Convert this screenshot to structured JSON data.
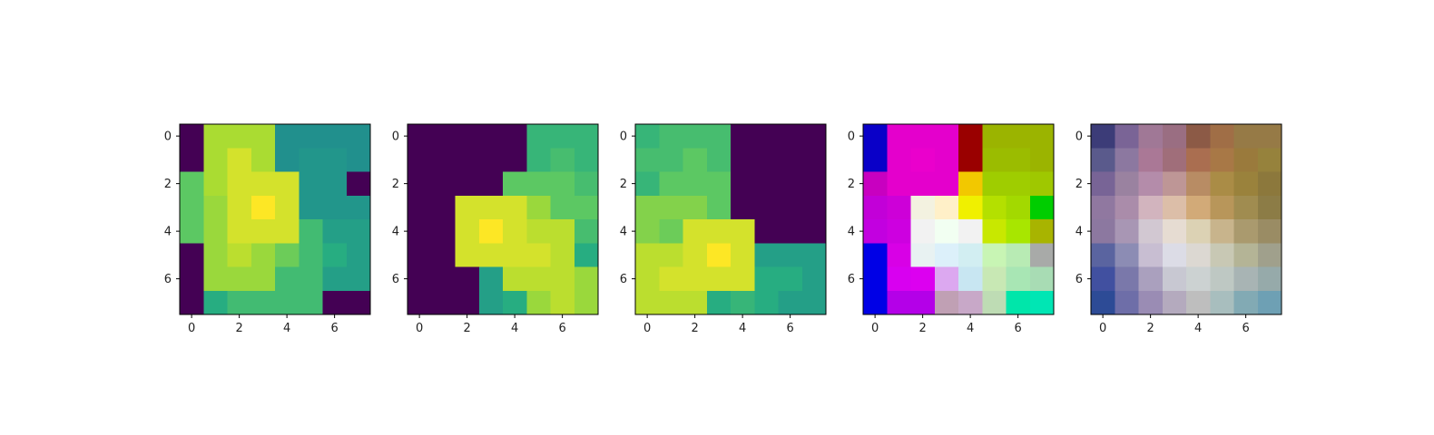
{
  "chart_data": [
    {
      "type": "heatmap",
      "colormap": "viridis",
      "x": [
        0,
        1,
        2,
        3,
        4,
        5,
        6,
        7
      ],
      "y": [
        0,
        1,
        2,
        3,
        4,
        5,
        6,
        7
      ],
      "x_ticks": [
        "0",
        "2",
        "4",
        "6"
      ],
      "y_ticks": [
        "0",
        "2",
        "4",
        "6"
      ],
      "vmin": 0,
      "vmax": 8,
      "values": [
        [
          0,
          7,
          7,
          7,
          4,
          4,
          4,
          4
        ],
        [
          0,
          7,
          7.5,
          7,
          4,
          4.2,
          4.2,
          4
        ],
        [
          6,
          7,
          7.5,
          7.5,
          7.5,
          4.2,
          4.2,
          0
        ],
        [
          6,
          6.8,
          7.5,
          8,
          7.5,
          4.2,
          4.2,
          4.2
        ],
        [
          6,
          6.8,
          7.5,
          7.5,
          7.5,
          5.5,
          4.5,
          4.5
        ],
        [
          0,
          6.8,
          7.2,
          6.8,
          6.2,
          5.5,
          5,
          4.5
        ],
        [
          0,
          6.8,
          6.8,
          6.8,
          5.5,
          5.5,
          4.5,
          4.5
        ],
        [
          0,
          5,
          5.5,
          5.5,
          5.5,
          5.5,
          0,
          0
        ]
      ]
    },
    {
      "type": "heatmap",
      "colormap": "viridis",
      "x": [
        0,
        1,
        2,
        3,
        4,
        5,
        6,
        7
      ],
      "y": [
        0,
        1,
        2,
        3,
        4,
        5,
        6,
        7
      ],
      "x_ticks": [
        "0",
        "2",
        "4",
        "6"
      ],
      "y_ticks": [
        "0",
        "2",
        "4",
        "6"
      ],
      "vmin": 0,
      "vmax": 8,
      "values": [
        [
          0,
          0,
          0,
          0,
          0,
          5.3,
          5.3,
          5.3
        ],
        [
          0,
          0,
          0,
          0,
          0,
          5.3,
          5.6,
          5.3
        ],
        [
          0,
          0,
          0,
          0,
          6,
          6,
          6,
          5.6
        ],
        [
          0,
          0,
          7.5,
          7.5,
          7.5,
          6.8,
          6,
          6
        ],
        [
          0,
          0,
          7.5,
          8,
          7.5,
          7.2,
          7.2,
          5.6
        ],
        [
          0,
          0,
          7.5,
          7.5,
          7.5,
          7.5,
          7.2,
          5
        ],
        [
          0,
          0,
          0,
          4.5,
          7.2,
          7.2,
          7.2,
          6.8
        ],
        [
          0,
          0,
          0,
          4.5,
          5,
          6.8,
          7.2,
          6.8
        ]
      ]
    },
    {
      "type": "heatmap",
      "colormap": "viridis",
      "x": [
        0,
        1,
        2,
        3,
        4,
        5,
        6,
        7
      ],
      "y": [
        0,
        1,
        2,
        3,
        4,
        5,
        6,
        7
      ],
      "x_ticks": [
        "0",
        "2",
        "4",
        "6"
      ],
      "y_ticks": [
        "0",
        "2",
        "4",
        "6"
      ],
      "vmin": 0,
      "vmax": 8,
      "values": [
        [
          5.3,
          5.6,
          5.6,
          5.6,
          0,
          0,
          0,
          0
        ],
        [
          5.6,
          5.6,
          6,
          5.6,
          0,
          0,
          0,
          0
        ],
        [
          5.3,
          6,
          6,
          6,
          0,
          0,
          0,
          0
        ],
        [
          6.5,
          6.5,
          6.5,
          6,
          0,
          0,
          0,
          0
        ],
        [
          6.5,
          6.2,
          7.5,
          7.5,
          7.5,
          0,
          0,
          0
        ],
        [
          7.2,
          7.2,
          7.5,
          8,
          7.5,
          4.5,
          4.5,
          4.5
        ],
        [
          7.2,
          7.5,
          7.5,
          7.5,
          7.5,
          5,
          5,
          4.5
        ],
        [
          7.2,
          7.2,
          7.2,
          5,
          5.3,
          5,
          4.5,
          4.5
        ]
      ]
    },
    {
      "type": "heatmap",
      "colormap": "rgb",
      "x": [
        0,
        1,
        2,
        3,
        4,
        5,
        6,
        7
      ],
      "y": [
        0,
        1,
        2,
        3,
        4,
        5,
        6,
        7
      ],
      "x_ticks": [
        "0",
        "2",
        "4",
        "6"
      ],
      "y_ticks": [
        "0",
        "2",
        "4",
        "6"
      ],
      "values": [
        [
          "#0a00c8",
          "#e400cc",
          "#e400cc",
          "#e400cc",
          "#9a0000",
          "#9bb400",
          "#9bb400",
          "#9bb400"
        ],
        [
          "#0a00c8",
          "#e400cc",
          "#ea00cc",
          "#e400cc",
          "#9a0000",
          "#9bbc00",
          "#9bbc00",
          "#9bb400"
        ],
        [
          "#c800c0",
          "#e400cc",
          "#e400cc",
          "#e400cc",
          "#f2c800",
          "#9fcd00",
          "#9fcd00",
          "#9fc800"
        ],
        [
          "#c200d8",
          "#cd00d8",
          "#f3f2e0",
          "#fff0c8",
          "#f0f000",
          "#b4e000",
          "#a3d900",
          "#00cd00"
        ],
        [
          "#c200e0",
          "#cd00e0",
          "#f2f2f2",
          "#f2fff2",
          "#f2f2f2",
          "#c8e800",
          "#a8e600",
          "#a8b400"
        ],
        [
          "#0000e6",
          "#d800e6",
          "#e8f2f2",
          "#dcf0fa",
          "#d2eef2",
          "#c8f5b4",
          "#b8ebb4",
          "#a8aaa8"
        ],
        [
          "#0000e6",
          "#d800f0",
          "#dc00f0",
          "#dca8f0",
          "#c8e6f2",
          "#c8e8b4",
          "#a8e6b4",
          "#a8dcb4"
        ],
        [
          "#0000e6",
          "#b400e8",
          "#b400e8",
          "#c0a0b4",
          "#c8a8c8",
          "#bedcb4",
          "#00e6aa",
          "#00e6b4"
        ]
      ]
    },
    {
      "type": "heatmap",
      "colormap": "rgb",
      "x": [
        0,
        1,
        2,
        3,
        4,
        5,
        6,
        7
      ],
      "y": [
        0,
        1,
        2,
        3,
        4,
        5,
        6,
        7
      ],
      "x_ticks": [
        "0",
        "2",
        "4",
        "6"
      ],
      "y_ticks": [
        "0",
        "2",
        "4",
        "6"
      ],
      "values": [
        [
          "#3c3c78",
          "#7a6496",
          "#a07896",
          "#9a6e82",
          "#8c5a46",
          "#a06e46",
          "#967a46",
          "#967a46"
        ],
        [
          "#5a5a8c",
          "#8c78a0",
          "#aa7896",
          "#a06e7a",
          "#aa6e50",
          "#a87846",
          "#9a7a3c",
          "#96823c"
        ],
        [
          "#786496",
          "#9a82a0",
          "#b48caa",
          "#be9696",
          "#b88c64",
          "#aa8c46",
          "#9a823c",
          "#8c783c"
        ],
        [
          "#9078a0",
          "#aa8caa",
          "#d2b4be",
          "#dcbea8",
          "#d2aa78",
          "#b8965a",
          "#a08c50",
          "#8c7c46"
        ],
        [
          "#8c78a0",
          "#a896b4",
          "#d2c8d2",
          "#e6dcd2",
          "#dcd2b4",
          "#c8b48c",
          "#aa9a6e",
          "#9a8c64"
        ],
        [
          "#5a64a0",
          "#8c8cb4",
          "#c8bed2",
          "#dcdce6",
          "#dcd8d2",
          "#c8c8b4",
          "#b4b496",
          "#a0a08c"
        ],
        [
          "#4150a0",
          "#7a78aa",
          "#aaa0be",
          "#c8c8d2",
          "#ccd2d2",
          "#bec8c3",
          "#a8b4b4",
          "#96aaaa"
        ],
        [
          "#2d4b96",
          "#6e6ea8",
          "#9a8cb4",
          "#b4aabe",
          "#bebebe",
          "#a8bebe",
          "#82aab4",
          "#6ea0b4"
        ]
      ]
    }
  ]
}
